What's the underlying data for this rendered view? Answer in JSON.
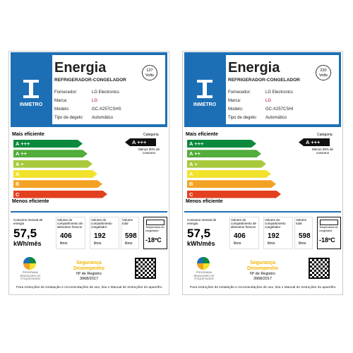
{
  "labels": [
    {
      "title": "Energia",
      "subtitle": "REFRIGERADOR-CONGELADOR",
      "voltage": "127",
      "voltage_unit": "Volts",
      "brand_logo": "INMETRO",
      "fields": [
        {
          "label": "Fornecedor:",
          "value": "LG Electronics"
        },
        {
          "label": "Marca:",
          "value": "LG"
        },
        {
          "label": "Modelo:",
          "value": "GC-X257CSHS"
        },
        {
          "label": "Tipo de degelo:",
          "value": "Automático"
        }
      ],
      "scale_top": "Mais eficiente",
      "scale_bottom": "Menos eficiente",
      "classes": [
        "A +++",
        "A ++",
        "A +",
        "A",
        "B",
        "C"
      ],
      "category_label": "Categoria",
      "rating": "A +++",
      "rating_note": "Menos 30% de consumo",
      "consumption": {
        "label": "Consumo mensal de energia",
        "value": "57,5",
        "unit": "kWh/mês"
      },
      "volumes": [
        {
          "label": "Volume do compartimento de alimentos frescos",
          "value": "406",
          "unit": "litros"
        },
        {
          "label": "Volume do compartimento congelador",
          "value": "192",
          "unit": "litros"
        },
        {
          "label": "Volume total",
          "value": "598",
          "unit": "litros"
        }
      ],
      "temperature": {
        "label": "Temperatura do congelador",
        "value": "-18ºC"
      },
      "program": "PROGRAMA BRASILEIRO DE ETIQUETAGEM",
      "safety": "Segurança Desempenho",
      "registry_label": "Nº de Registro",
      "registry": "3968/2017",
      "footer": "Para instruções de instalação e recomendações de uso, leia o Manual de Instruções do aparelho."
    },
    {
      "title": "Energia",
      "subtitle": "REFRIGERADOR-CONGELADOR",
      "voltage": "220",
      "voltage_unit": "Volts",
      "brand_logo": "INMETRO",
      "fields": [
        {
          "label": "Fornecedor:",
          "value": "LG Electronics"
        },
        {
          "label": "Marca:",
          "value": "LG"
        },
        {
          "label": "Modelo:",
          "value": "GC-X257CSHI"
        },
        {
          "label": "Tipo de degelo:",
          "value": "Automático"
        }
      ],
      "scale_top": "Mais eficiente",
      "scale_bottom": "Menos eficiente",
      "classes": [
        "A +++",
        "A ++",
        "A +",
        "A",
        "B",
        "C"
      ],
      "category_label": "Categoria",
      "rating": "A +++",
      "rating_note": "Menos 30% de consumo",
      "consumption": {
        "label": "Consumo mensal de energia",
        "value": "57,5",
        "unit": "kWh/mês"
      },
      "volumes": [
        {
          "label": "Volume do compartimento de alimentos frescos",
          "value": "406",
          "unit": "litros"
        },
        {
          "label": "Volume do compartimento congelador",
          "value": "192",
          "unit": "litros"
        },
        {
          "label": "Volume total",
          "value": "598",
          "unit": "litros"
        }
      ],
      "temperature": {
        "label": "Temperatura do congelador",
        "value": "-18ºC"
      },
      "program": "PROGRAMA BRASILEIRO DE ETIQUETAGEM",
      "safety": "Segurança Desempenho",
      "registry_label": "Nº de Registro",
      "registry": "3968/2017",
      "footer": "Para instruções de instalação e recomendações de uso, leia o Manual de Instruções do aparelho."
    }
  ]
}
